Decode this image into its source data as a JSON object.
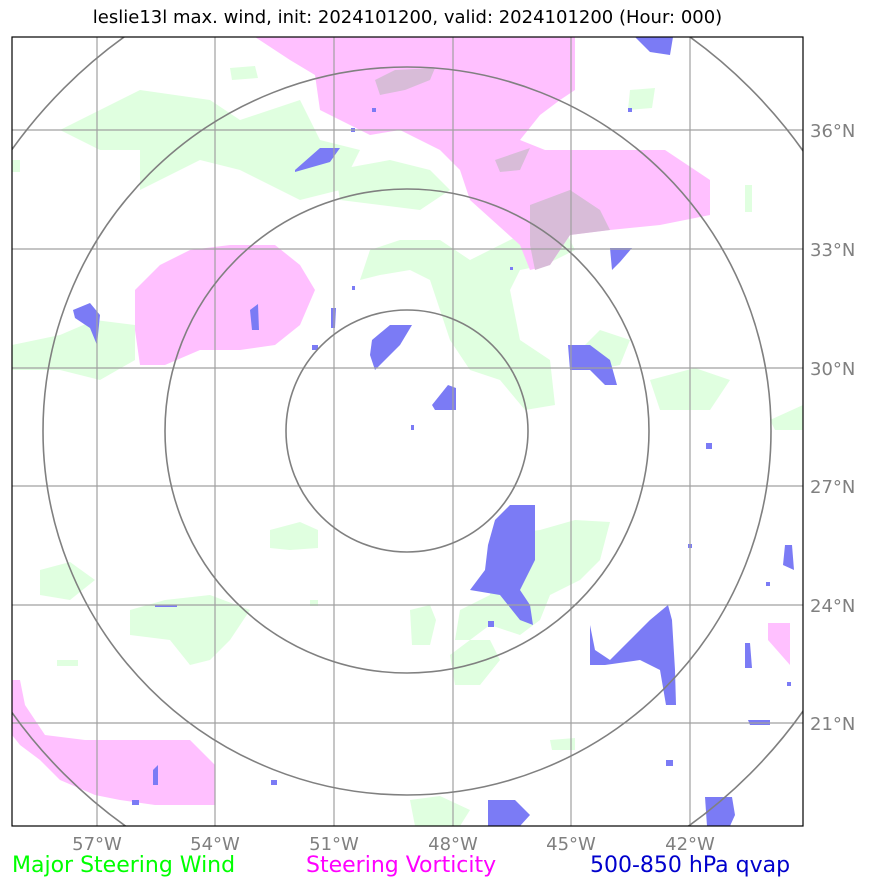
{
  "title": "leslie13l max. wind, init: 2024101200, valid: 2024101200 (Hour: 000)",
  "map": {
    "lon_ticks": [
      "57°W",
      "54°W",
      "51°W",
      "48°W",
      "45°W",
      "42°W"
    ],
    "lat_ticks": [
      "36°N",
      "33°N",
      "30°N",
      "27°N",
      "24°N",
      "21°N"
    ],
    "range_rings": 4,
    "colors": {
      "steering_wind_fill": "#e0ffe0",
      "vorticity_fill": "#ffc0ff",
      "qvap_fill": "#7b7bf5",
      "grid": "#a0a0a0",
      "rings": "#808080"
    }
  },
  "legend": {
    "wind": "Major Steering Wind",
    "vorticity": "Steering Vorticity",
    "qvap": "500-850 hPa qvap"
  }
}
